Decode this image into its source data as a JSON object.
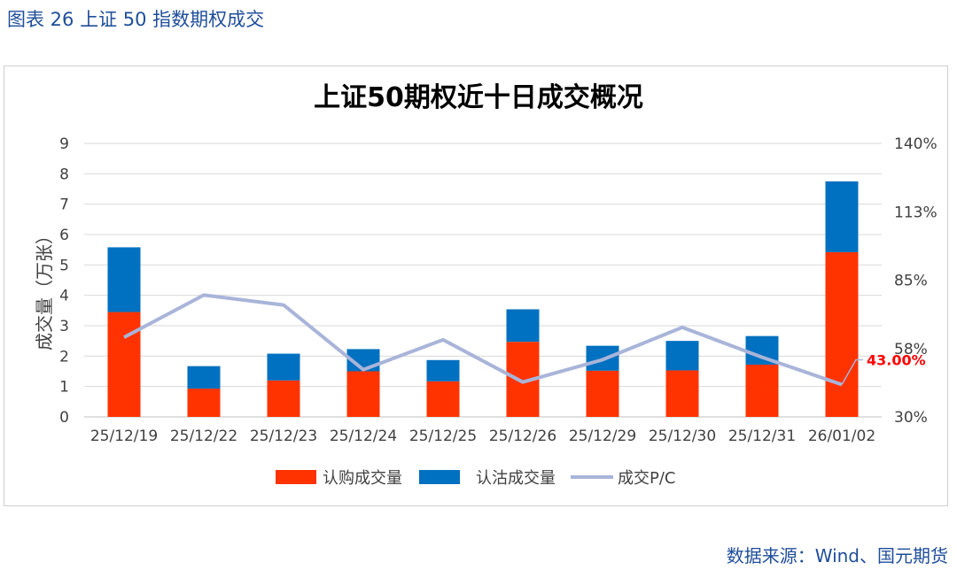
{
  "figure": {
    "caption": "图表 26 上证 50 指数期权成交",
    "source": "数据来源：Wind、国元期货"
  },
  "chart_data": {
    "type": "bar",
    "stacked": true,
    "title": "上证50期权近十日成交概况",
    "ylabel": "成交量（万张）",
    "ylim": [
      0,
      9
    ],
    "yticks": [
      "0",
      "1",
      "2",
      "3",
      "4",
      "5",
      "6",
      "7",
      "8",
      "9"
    ],
    "y2lim": [
      0.3,
      1.4
    ],
    "y2ticks": [
      "30%",
      "58%",
      "85%",
      "113%",
      "140%"
    ],
    "categories": [
      "25/12/19",
      "25/12/22",
      "25/12/23",
      "25/12/24",
      "25/12/25",
      "25/12/26",
      "25/12/29",
      "25/12/30",
      "25/12/31",
      "26/01/02"
    ],
    "series": [
      {
        "name": "认购成交量",
        "kind": "bar",
        "color": "#FF3300",
        "values": [
          3.45,
          0.93,
          1.2,
          1.5,
          1.17,
          2.47,
          1.52,
          1.53,
          1.72,
          5.42
        ]
      },
      {
        "name": "认沽成交量",
        "kind": "bar",
        "color": "#0070C0",
        "values": [
          2.13,
          0.74,
          0.88,
          0.73,
          0.7,
          1.07,
          0.82,
          0.97,
          0.94,
          2.33
        ]
      },
      {
        "name": "成交P/C",
        "kind": "line",
        "axis": "right",
        "color": "#A9B4D9",
        "values": [
          0.62,
          0.79,
          0.75,
          0.49,
          0.61,
          0.44,
          0.53,
          0.66,
          0.54,
          0.43
        ]
      }
    ],
    "annotation": {
      "text": "43.00%",
      "color": "#FF0000"
    },
    "legend_position": "bottom",
    "grid": true
  }
}
